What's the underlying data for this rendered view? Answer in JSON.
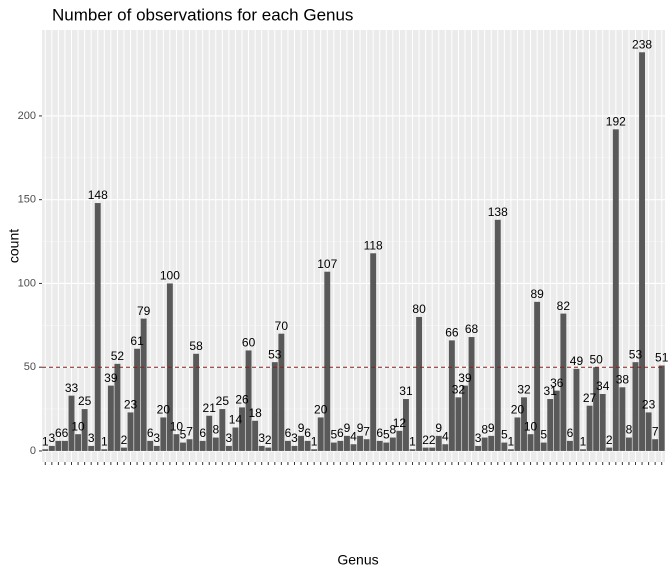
{
  "chart_data": {
    "type": "bar",
    "title": "Number of observations for each Genus",
    "x_label": "Genus",
    "y_label": "count",
    "categories": [
      null,
      null,
      null,
      null,
      null,
      null,
      null,
      null,
      null,
      null,
      null,
      null,
      null,
      null,
      null,
      null,
      null,
      null,
      null,
      null,
      null,
      null,
      null,
      null,
      null,
      null,
      null,
      null,
      null,
      null,
      null,
      null,
      null,
      null,
      null,
      null,
      null,
      null,
      null,
      null,
      null,
      null,
      null,
      null,
      null,
      null,
      null,
      null,
      null,
      null,
      null,
      null,
      null,
      null,
      null,
      null,
      null,
      null,
      null,
      null,
      null,
      null,
      null,
      null,
      null,
      null,
      null,
      null,
      null,
      null,
      null,
      null,
      null,
      null,
      null,
      null,
      null,
      null,
      null,
      null,
      null,
      null,
      null,
      null,
      null,
      null,
      null,
      null,
      null,
      null,
      null,
      null,
      null,
      null,
      null
    ],
    "values": [
      1,
      3,
      6,
      6,
      33,
      10,
      25,
      3,
      148,
      1,
      39,
      52,
      2,
      23,
      61,
      79,
      6,
      3,
      20,
      100,
      10,
      5,
      7,
      58,
      6,
      21,
      8,
      25,
      3,
      14,
      26,
      60,
      18,
      3,
      2,
      53,
      70,
      6,
      3,
      9,
      6,
      1,
      20,
      107,
      5,
      6,
      9,
      4,
      9,
      7,
      118,
      6,
      5,
      8,
      12,
      31,
      1,
      80,
      2,
      2,
      9,
      4,
      66,
      32,
      39,
      68,
      3,
      8,
      9,
      138,
      5,
      1,
      20,
      32,
      10,
      89,
      5,
      31,
      36,
      82,
      6,
      49,
      1,
      27,
      50,
      34,
      2,
      192,
      38,
      8,
      53,
      238,
      23,
      7,
      51
    ],
    "color": "#595959",
    "reference_line": {
      "value": 50,
      "color": "#cc0000"
    },
    "ylim": [
      -6.6,
      251.3
    ],
    "yticks": [
      0,
      50,
      100,
      150,
      200
    ],
    "grid": true
  }
}
